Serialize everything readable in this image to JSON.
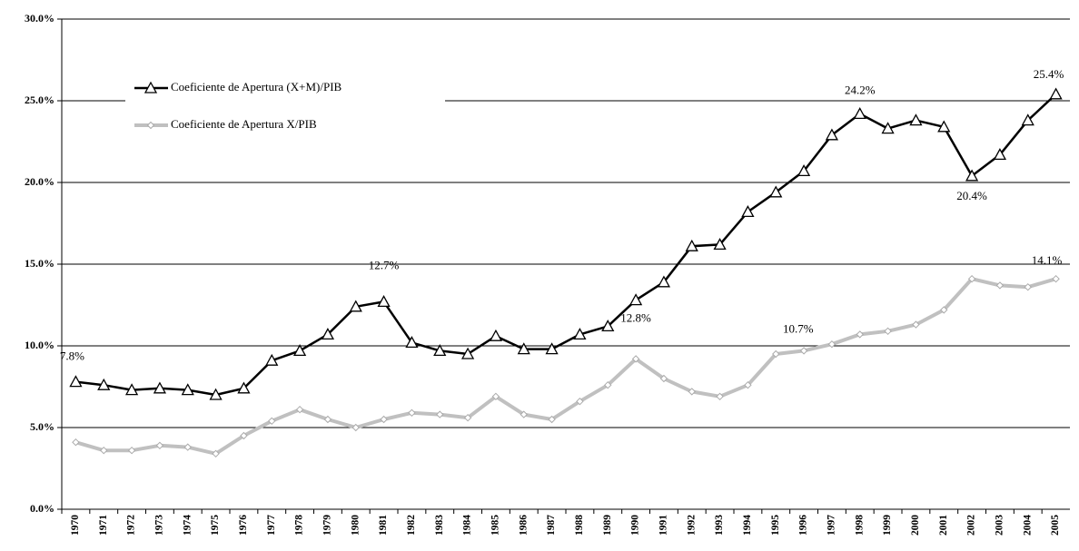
{
  "chart_data": {
    "type": "line",
    "categories": [
      "1970",
      "1971",
      "1972",
      "1973",
      "1974",
      "1975",
      "1976",
      "1977",
      "1978",
      "1979",
      "1980",
      "1981",
      "1982",
      "1983",
      "1984",
      "1985",
      "1986",
      "1987",
      "1988",
      "1989",
      "1990",
      "1991",
      "1992",
      "1993",
      "1994",
      "1995",
      "1996",
      "1997",
      "1998",
      "1999",
      "2000",
      "2001",
      "2002",
      "2003",
      "2004",
      "2005"
    ],
    "series": [
      {
        "name": "Coeficiente de Apertura (X+M)/PIB",
        "color": "#000000",
        "marker": "triangle",
        "values": [
          7.8,
          7.6,
          7.3,
          7.4,
          7.3,
          7.0,
          7.4,
          9.1,
          9.7,
          10.7,
          12.4,
          12.7,
          10.2,
          9.7,
          9.5,
          10.6,
          9.8,
          9.8,
          10.7,
          11.2,
          12.8,
          13.9,
          16.1,
          16.2,
          18.2,
          19.4,
          20.7,
          22.9,
          24.2,
          23.3,
          23.8,
          23.4,
          20.4,
          21.7,
          23.8,
          25.4
        ],
        "value_labels": [
          "7.8%",
          null,
          null,
          null,
          null,
          null,
          null,
          null,
          null,
          null,
          null,
          "12.7%",
          null,
          null,
          null,
          null,
          null,
          null,
          null,
          null,
          "12.8%",
          null,
          null,
          null,
          null,
          null,
          null,
          null,
          "24.2%",
          null,
          null,
          null,
          "20.4%",
          null,
          null,
          "25.4%"
        ]
      },
      {
        "name": "Coeficiente de Apertura X/PIB",
        "color": "#c0c0c0",
        "marker": "diamond",
        "values": [
          4.1,
          3.6,
          3.6,
          3.9,
          3.8,
          3.4,
          4.5,
          5.4,
          6.1,
          5.5,
          5.0,
          5.5,
          5.9,
          5.8,
          5.6,
          6.9,
          5.8,
          5.5,
          6.6,
          7.6,
          9.2,
          8.0,
          7.2,
          6.9,
          7.6,
          9.5,
          9.7,
          10.1,
          10.7,
          10.9,
          11.3,
          12.2,
          14.1,
          13.7,
          13.6,
          14.1
        ],
        "value_labels": [
          null,
          null,
          null,
          null,
          null,
          null,
          null,
          null,
          null,
          null,
          null,
          null,
          null,
          null,
          null,
          null,
          null,
          null,
          null,
          null,
          null,
          null,
          null,
          null,
          null,
          null,
          null,
          null,
          "10.7%",
          null,
          null,
          null,
          null,
          null,
          null,
          "14.1%"
        ]
      }
    ],
    "ylim": [
      0,
      30
    ],
    "yticks": [
      {
        "value": 0,
        "label": "0.0%"
      },
      {
        "value": 5,
        "label": "5.0%"
      },
      {
        "value": 10,
        "label": "10.0%"
      },
      {
        "value": 15,
        "label": "15.0%"
      },
      {
        "value": 20,
        "label": "20.0%"
      },
      {
        "value": 25,
        "label": "25.0%"
      },
      {
        "value": 30,
        "label": "30.0%"
      }
    ],
    "grid": true,
    "legend": "top-left"
  }
}
